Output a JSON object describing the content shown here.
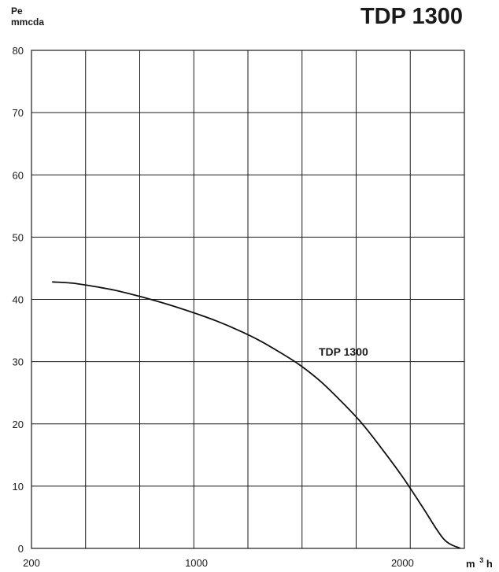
{
  "chart_data": {
    "type": "line",
    "title": "TDP 1300",
    "ylabel": "Pe",
    "ylabel_unit": "mmcda",
    "xlabel_unit": "m",
    "xlabel_sup": "3",
    "xlabel_suffix": "h",
    "xlim": [
      200,
      2300
    ],
    "ylim": [
      0,
      80
    ],
    "x_ticks": [
      200,
      1000,
      2000
    ],
    "y_ticks": [
      0,
      10,
      20,
      30,
      40,
      50,
      60,
      70,
      80
    ],
    "grid": true,
    "series": [
      {
        "name": "TDP 1300",
        "x": [
          300,
          400,
          500,
          600,
          700,
          800,
          900,
          1000,
          1100,
          1200,
          1300,
          1400,
          1500,
          1600,
          1700,
          1800,
          1900,
          2000,
          2100,
          2200,
          2280
        ],
        "y": [
          42.8,
          42.6,
          42.1,
          41.5,
          40.7,
          39.8,
          38.8,
          37.7,
          36.5,
          35.1,
          33.5,
          31.6,
          29.5,
          26.9,
          23.7,
          20.2,
          16.0,
          11.5,
          6.5,
          1.5,
          0
        ]
      }
    ]
  }
}
